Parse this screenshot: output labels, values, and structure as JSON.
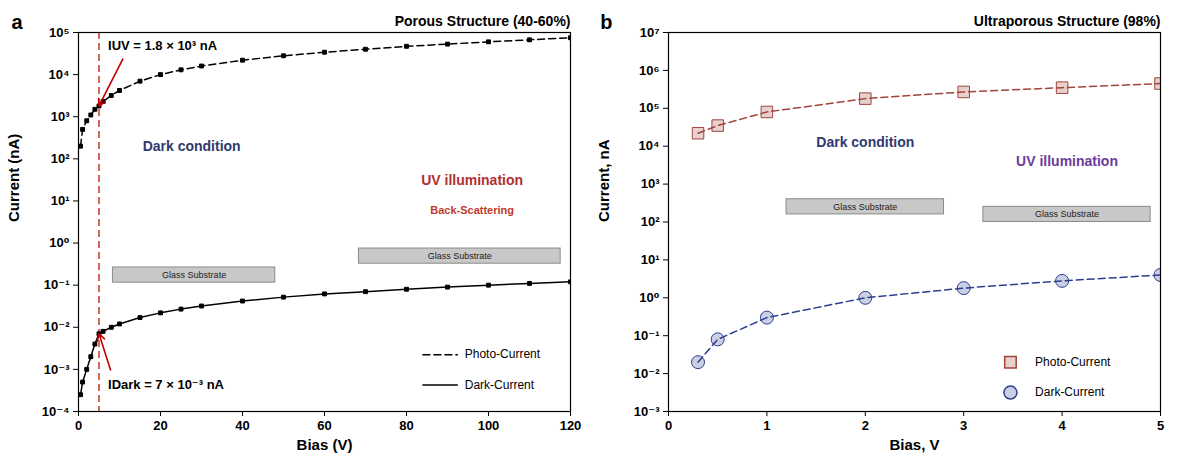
{
  "chart_data": [
    {
      "panel": "a",
      "type": "line",
      "title": "Porous Structure (40-60%)",
      "x_label": "Bias (V)",
      "y_label": "Current (nA)",
      "log": "y",
      "grid": false,
      "legend": "bottom-right",
      "xlim": [
        0,
        120
      ],
      "ylim": [
        0.0001,
        100000
      ],
      "xticks": [
        0,
        20,
        40,
        60,
        80,
        100,
        120
      ],
      "yticks": [
        {
          "value": 0.0001,
          "label": "10⁻⁴"
        },
        {
          "value": 0.001,
          "label": "10⁻³"
        },
        {
          "value": 0.01,
          "label": "10⁻²"
        },
        {
          "value": 0.1,
          "label": "10⁻¹"
        },
        {
          "value": 1,
          "label": "10⁰"
        },
        {
          "value": 10,
          "label": "10¹"
        },
        {
          "value": 100,
          "label": "10²"
        },
        {
          "value": 1000,
          "label": "10³"
        },
        {
          "value": 10000,
          "label": "10⁴"
        },
        {
          "value": 100000,
          "label": "10⁵"
        }
      ],
      "x": [
        0.5,
        1,
        2,
        3,
        4,
        5,
        6,
        8,
        10,
        15,
        20,
        25,
        30,
        40,
        50,
        60,
        70,
        80,
        90,
        100,
        110,
        120
      ],
      "series": [
        {
          "name": "Photo-Current",
          "color": "#000000",
          "marker": "square",
          "line_style": "dashed",
          "values": [
            200,
            500,
            800,
            1100,
            1500,
            1800,
            2300,
            3200,
            4200,
            7000,
            10000,
            13000,
            16000,
            22000,
            28000,
            34000,
            40000,
            47000,
            53000,
            60000,
            67000,
            75000
          ]
        },
        {
          "name": "Dark-Current",
          "color": "#000000",
          "marker": "square",
          "line_style": "solid",
          "values": [
            0.00025,
            0.0005,
            0.001,
            0.002,
            0.004,
            0.007,
            0.008,
            0.01,
            0.012,
            0.017,
            0.022,
            0.027,
            0.032,
            0.042,
            0.052,
            0.062,
            0.07,
            0.08,
            0.09,
            0.1,
            0.11,
            0.12
          ]
        }
      ],
      "vline": {
        "x": 5,
        "color": "#c0392b",
        "line_style": "dashed"
      },
      "annotations": [
        {
          "text": "IUV = 1.8 × 10³ nA",
          "x": 5,
          "y": 1800
        },
        {
          "text": "IDark = 7 × 10⁻³ nA",
          "x": 5,
          "y": 0.007
        }
      ],
      "insets": [
        {
          "title": "Dark condition",
          "substrate": "Glass Substrate"
        },
        {
          "title": "UV illumination",
          "note": "Back-Scattering",
          "substrate": "Glass Substrate"
        }
      ]
    },
    {
      "panel": "b",
      "type": "line",
      "title": "Ultraporous Structure (98%)",
      "x_label": "Bias, V",
      "y_label": "Current, nA",
      "log": "y",
      "grid": false,
      "legend": "bottom-right",
      "xlim": [
        0,
        5
      ],
      "ylim": [
        0.001,
        10000000
      ],
      "xticks": [
        0,
        1,
        2,
        3,
        4,
        5
      ],
      "yticks": [
        {
          "value": 0.001,
          "label": "10⁻³"
        },
        {
          "value": 0.01,
          "label": "10⁻²"
        },
        {
          "value": 0.1,
          "label": "10⁻¹"
        },
        {
          "value": 1,
          "label": "10⁰"
        },
        {
          "value": 10,
          "label": "10¹"
        },
        {
          "value": 100,
          "label": "10²"
        },
        {
          "value": 1000,
          "label": "10³"
        },
        {
          "value": 10000,
          "label": "10⁴"
        },
        {
          "value": 100000,
          "label": "10⁵"
        },
        {
          "value": 1000000,
          "label": "10⁶"
        },
        {
          "value": 10000000,
          "label": "10⁷"
        }
      ],
      "x": [
        0.3,
        0.5,
        1,
        2,
        3,
        4,
        5
      ],
      "series": [
        {
          "name": "Photo-Current",
          "color": "#a0453c",
          "marker": "square",
          "line_style": "dashed",
          "values": [
            22000,
            35000,
            80000,
            180000,
            270000,
            350000,
            450000
          ]
        },
        {
          "name": "Dark-Current",
          "color": "#2e3f8f",
          "marker": "circle",
          "line_style": "dashed",
          "values": [
            0.02,
            0.08,
            0.3,
            1.0,
            1.8,
            2.8,
            4
          ]
        }
      ],
      "insets": [
        {
          "title": "Dark condition",
          "substrate": "Glass Substrate"
        },
        {
          "title": "UV illumination",
          "substrate": "Glass Substrate"
        }
      ]
    }
  ]
}
